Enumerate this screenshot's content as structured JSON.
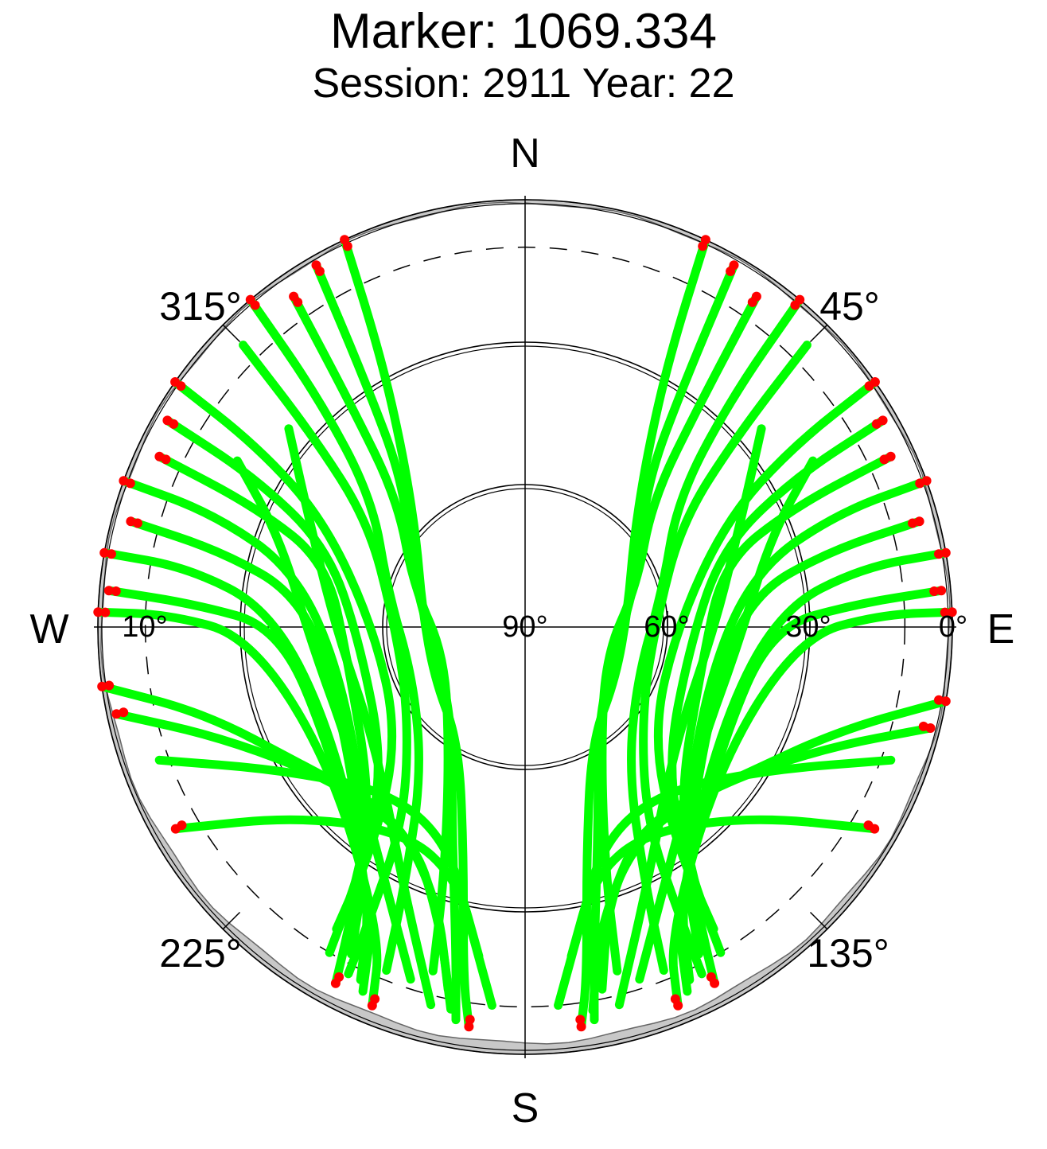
{
  "chart_data": {
    "type": "scatter",
    "subtype": "polar-skyplot",
    "title": "Marker: 1069.334",
    "subtitle": "Session: 2911 Year: 22",
    "directions": {
      "north": "N",
      "south": "S",
      "east": "E",
      "west": "W"
    },
    "azimuth_labels": [
      "45°",
      "135°",
      "225°",
      "315°"
    ],
    "elevation_labels": [
      "0°",
      "10°",
      "30°",
      "60°",
      "90°"
    ],
    "elevation_rings": [
      0,
      30,
      60
    ],
    "cutoff_elevation_deg": 10,
    "legend": "none",
    "colors": {
      "track": "#00ff00",
      "low_elevation_point": "#ff0000",
      "horizon_mask": "#c8c8c8",
      "ring": "#000000",
      "cutoff_ring": "#000000"
    },
    "series": [
      {
        "name_hidden": true,
        "type": "satellite-tracks",
        "tracks_az_el": [
          [
            [
              25,
              0
            ],
            [
              28,
              25
            ],
            [
              35,
              45
            ],
            [
              50,
              60
            ],
            [
              80,
              68
            ],
            [
              120,
              68
            ],
            [
              150,
              62
            ],
            [
              165,
              40
            ],
            [
              170,
              15
            ],
            [
              172,
              5
            ]
          ],
          [
            [
              30,
              2
            ],
            [
              33,
              28
            ],
            [
              40,
              50
            ],
            [
              60,
              62
            ],
            [
              100,
              70
            ],
            [
              140,
              66
            ],
            [
              160,
              45
            ],
            [
              168,
              20
            ],
            [
              170,
              6
            ]
          ],
          [
            [
              35,
              5
            ],
            [
              38,
              30
            ],
            [
              45,
              52
            ],
            [
              70,
              65
            ],
            [
              110,
              72
            ],
            [
              150,
              58
            ],
            [
              162,
              35
            ],
            [
              165,
              15
            ]
          ],
          [
            [
              40,
              0
            ],
            [
              42,
              25
            ],
            [
              50,
              48
            ],
            [
              75,
              60
            ],
            [
              115,
              64
            ],
            [
              145,
              52
            ],
            [
              155,
              30
            ],
            [
              158,
              12
            ]
          ],
          [
            [
              45,
              6
            ],
            [
              48,
              30
            ],
            [
              56,
              50
            ],
            [
              85,
              62
            ],
            [
              125,
              60
            ],
            [
              148,
              42
            ],
            [
              152,
              20
            ],
            [
              153,
              8
            ]
          ],
          [
            [
              55,
              0
            ],
            [
              56,
              22
            ],
            [
              62,
              42
            ],
            [
              90,
              58
            ],
            [
              130,
              55
            ],
            [
              145,
              35
            ],
            [
              148,
              15
            ]
          ],
          [
            [
              60,
              3
            ],
            [
              61,
              25
            ],
            [
              68,
              45
            ],
            [
              95,
              55
            ],
            [
              135,
              48
            ],
            [
              146,
              28
            ],
            [
              149,
              10
            ]
          ],
          [
            [
              65,
              5
            ],
            [
              66,
              28
            ],
            [
              72,
              46
            ],
            [
              100,
              52
            ],
            [
              140,
              40
            ],
            [
              148,
              20
            ]
          ],
          [
            [
              70,
              0
            ],
            [
              70,
              20
            ],
            [
              76,
              40
            ],
            [
              105,
              50
            ],
            [
              143,
              35
            ],
            [
              150,
              15
            ],
            [
              152,
              5
            ]
          ],
          [
            [
              75,
              4
            ],
            [
              76,
              24
            ],
            [
              82,
              42
            ],
            [
              110,
              48
            ],
            [
              146,
              30
            ],
            [
              152,
              12
            ]
          ],
          [
            [
              80,
              0
            ],
            [
              80,
              18
            ],
            [
              86,
              36
            ],
            [
              115,
              44
            ],
            [
              150,
              25
            ],
            [
              155,
              8
            ]
          ],
          [
            [
              85,
              2
            ],
            [
              86,
              20
            ],
            [
              90,
              38
            ],
            [
              120,
              42
            ],
            [
              152,
              22
            ],
            [
              156,
              6
            ]
          ],
          [
            [
              88,
              0
            ],
            [
              88,
              15
            ],
            [
              92,
              32
            ],
            [
              125,
              40
            ],
            [
              155,
              18
            ],
            [
              158,
              4
            ]
          ],
          [
            [
              60,
              20
            ],
            [
              70,
              35
            ],
            [
              95,
              45
            ],
            [
              125,
              45
            ],
            [
              150,
              30
            ],
            [
              162,
              12
            ]
          ],
          [
            [
              50,
              25
            ],
            [
              62,
              38
            ],
            [
              90,
              50
            ],
            [
              128,
              50
            ],
            [
              156,
              28
            ],
            [
              166,
              8
            ]
          ],
          [
            [
              110,
              8
            ],
            [
              120,
              30
            ],
            [
              140,
              45
            ],
            [
              160,
              42
            ],
            [
              170,
              25
            ],
            [
              175,
              10
            ]
          ],
          [
            [
              120,
              5
            ],
            [
              130,
              28
            ],
            [
              150,
              40
            ],
            [
              165,
              35
            ],
            [
              172,
              20
            ]
          ],
          [
            [
              335,
              0
            ],
            [
              332,
              25
            ],
            [
              325,
              45
            ],
            [
              310,
              60
            ],
            [
              280,
              68
            ],
            [
              240,
              68
            ],
            [
              210,
              62
            ],
            [
              195,
              40
            ],
            [
              190,
              15
            ],
            [
              188,
              5
            ]
          ],
          [
            [
              330,
              2
            ],
            [
              327,
              28
            ],
            [
              320,
              50
            ],
            [
              300,
              62
            ],
            [
              260,
              70
            ],
            [
              220,
              66
            ],
            [
              200,
              45
            ],
            [
              192,
              20
            ],
            [
              190,
              6
            ]
          ],
          [
            [
              325,
              5
            ],
            [
              322,
              30
            ],
            [
              315,
              52
            ],
            [
              290,
              65
            ],
            [
              250,
              72
            ],
            [
              210,
              58
            ],
            [
              198,
              35
            ],
            [
              195,
              15
            ]
          ],
          [
            [
              320,
              0
            ],
            [
              318,
              25
            ],
            [
              310,
              48
            ],
            [
              285,
              60
            ],
            [
              245,
              64
            ],
            [
              215,
              52
            ],
            [
              205,
              30
            ],
            [
              202,
              12
            ]
          ],
          [
            [
              315,
              6
            ],
            [
              312,
              30
            ],
            [
              304,
              50
            ],
            [
              275,
              62
            ],
            [
              235,
              60
            ],
            [
              212,
              42
            ],
            [
              208,
              20
            ],
            [
              207,
              8
            ]
          ],
          [
            [
              305,
              0
            ],
            [
              304,
              22
            ],
            [
              298,
              42
            ],
            [
              270,
              58
            ],
            [
              230,
              55
            ],
            [
              215,
              35
            ],
            [
              212,
              15
            ]
          ],
          [
            [
              300,
              3
            ],
            [
              299,
              25
            ],
            [
              292,
              45
            ],
            [
              265,
              55
            ],
            [
              225,
              48
            ],
            [
              214,
              28
            ],
            [
              211,
              10
            ]
          ],
          [
            [
              295,
              5
            ],
            [
              294,
              28
            ],
            [
              288,
              46
            ],
            [
              260,
              52
            ],
            [
              220,
              40
            ],
            [
              212,
              20
            ]
          ],
          [
            [
              290,
              0
            ],
            [
              290,
              20
            ],
            [
              284,
              40
            ],
            [
              255,
              50
            ],
            [
              217,
              35
            ],
            [
              210,
              15
            ],
            [
              208,
              5
            ]
          ],
          [
            [
              285,
              4
            ],
            [
              284,
              24
            ],
            [
              278,
              42
            ],
            [
              250,
              48
            ],
            [
              214,
              30
            ],
            [
              208,
              12
            ]
          ],
          [
            [
              280,
              0
            ],
            [
              280,
              18
            ],
            [
              274,
              36
            ],
            [
              245,
              44
            ],
            [
              210,
              25
            ],
            [
              205,
              8
            ]
          ],
          [
            [
              275,
              2
            ],
            [
              274,
              20
            ],
            [
              270,
              38
            ],
            [
              240,
              42
            ],
            [
              208,
              22
            ],
            [
              204,
              6
            ]
          ],
          [
            [
              272,
              0
            ],
            [
              272,
              15
            ],
            [
              268,
              32
            ],
            [
              235,
              40
            ],
            [
              205,
              18
            ],
            [
              202,
              4
            ]
          ],
          [
            [
              300,
              20
            ],
            [
              290,
              35
            ],
            [
              265,
              45
            ],
            [
              235,
              45
            ],
            [
              210,
              30
            ],
            [
              198,
              12
            ]
          ],
          [
            [
              310,
              25
            ],
            [
              298,
              38
            ],
            [
              270,
              50
            ],
            [
              232,
              50
            ],
            [
              204,
              28
            ],
            [
              194,
              8
            ]
          ],
          [
            [
              250,
              8
            ],
            [
              240,
              30
            ],
            [
              220,
              45
            ],
            [
              200,
              42
            ],
            [
              190,
              25
            ],
            [
              185,
              10
            ]
          ],
          [
            [
              240,
              5
            ],
            [
              230,
              28
            ],
            [
              210,
              40
            ],
            [
              195,
              35
            ],
            [
              188,
              20
            ]
          ],
          [
            [
              262,
              0
            ],
            [
              255,
              20
            ],
            [
              238,
              35
            ],
            [
              215,
              42
            ],
            [
              198,
              30
            ],
            [
              192,
              12
            ]
          ],
          [
            [
              258,
              2
            ],
            [
              250,
              22
            ],
            [
              232,
              38
            ],
            [
              208,
              40
            ],
            [
              196,
              25
            ],
            [
              191,
              8
            ]
          ],
          [
            [
              100,
              0
            ],
            [
              108,
              20
            ],
            [
              125,
              35
            ],
            [
              148,
              42
            ],
            [
              163,
              30
            ],
            [
              168,
              12
            ]
          ],
          [
            [
              104,
              2
            ],
            [
              112,
              22
            ],
            [
              130,
              38
            ],
            [
              152,
              40
            ],
            [
              166,
              25
            ],
            [
              170,
              8
            ]
          ]
        ],
        "red_point_elevation_max_deg": 5
      }
    ]
  }
}
